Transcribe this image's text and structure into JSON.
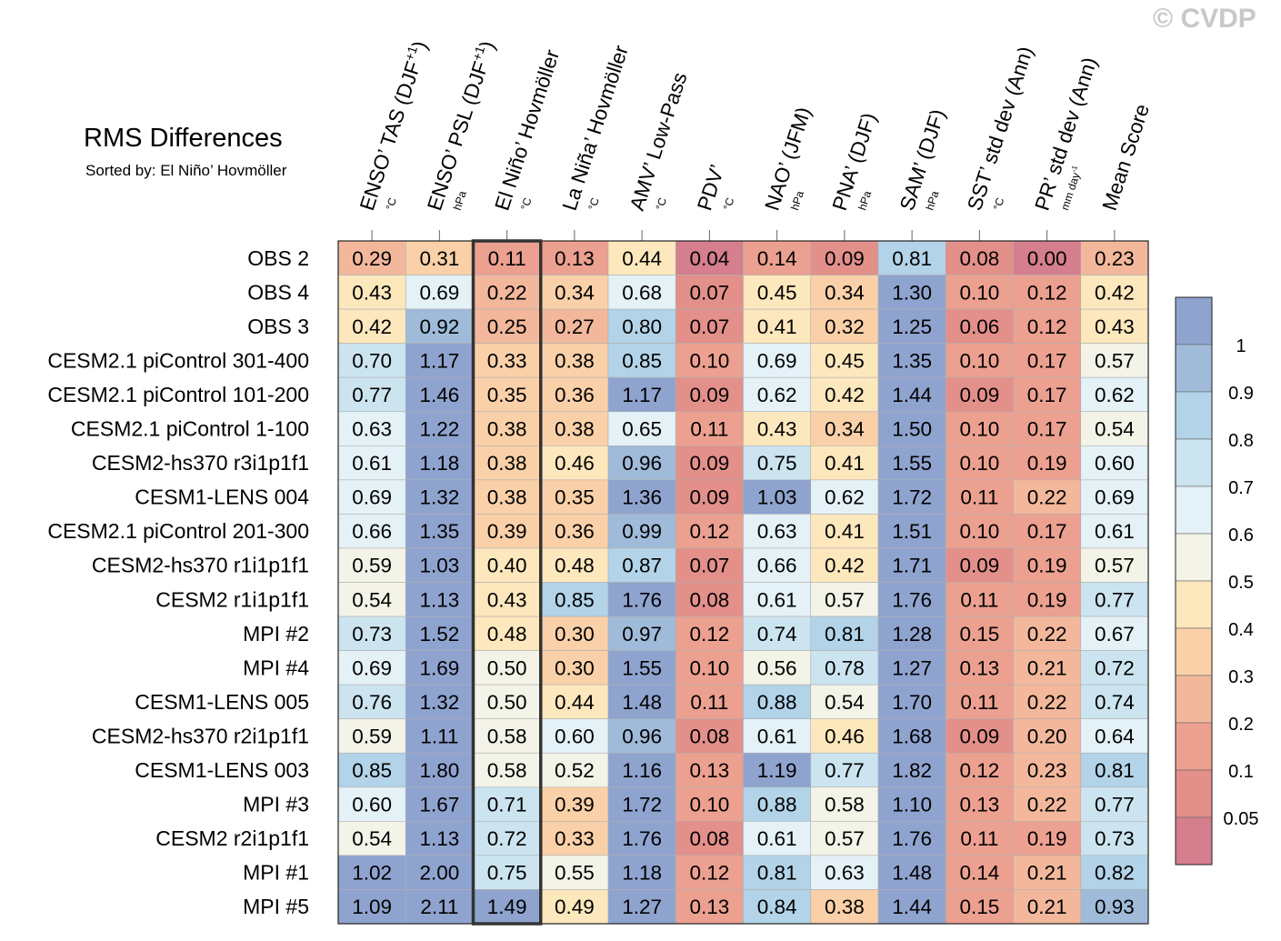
{
  "watermark": "© CVDP",
  "chart_data": {
    "type": "heatmap",
    "title": "RMS Differences",
    "subtitle": "Sorted by: El Niño’ Hovmöller",
    "columns": [
      {
        "label": "ENSO’ TAS (DJF",
        "sup": "+1",
        "close": ")",
        "unit": "°C"
      },
      {
        "label": "ENSO’ PSL (DJF",
        "sup": "+1",
        "close": ")",
        "unit": "hPa"
      },
      {
        "label": "El Niño’ Hovmöller",
        "unit": "°C"
      },
      {
        "label": "La Niña’ Hovmöller",
        "unit": "°C"
      },
      {
        "label": "AMV’ Low-Pass",
        "unit": "°C"
      },
      {
        "label": "PDV’",
        "unit": "°C"
      },
      {
        "label": "NAO’ (JFM)",
        "unit": "hPa"
      },
      {
        "label": "PNA’ (DJF)",
        "unit": "hPa"
      },
      {
        "label": "SAM’ (DJF)",
        "unit": "hPa"
      },
      {
        "label": "SST’ std dev (Ann)",
        "unit": "°C"
      },
      {
        "label": "PR’ std dev (Ann)",
        "unit": "mm day",
        "unit_sup": "-1"
      },
      {
        "label": "Mean Score",
        "unit": ""
      }
    ],
    "rows": [
      {
        "name": "OBS 2",
        "values": [
          0.29,
          0.31,
          0.11,
          0.13,
          0.44,
          0.04,
          0.14,
          0.09,
          0.81,
          0.08,
          0.0,
          0.23
        ]
      },
      {
        "name": "OBS 4",
        "values": [
          0.43,
          0.69,
          0.22,
          0.34,
          0.68,
          0.07,
          0.45,
          0.34,
          1.3,
          0.1,
          0.12,
          0.42
        ]
      },
      {
        "name": "OBS 3",
        "values": [
          0.42,
          0.92,
          0.25,
          0.27,
          0.8,
          0.07,
          0.41,
          0.32,
          1.25,
          0.06,
          0.12,
          0.43
        ]
      },
      {
        "name": "CESM2.1 piControl 301-400",
        "values": [
          0.7,
          1.17,
          0.33,
          0.38,
          0.85,
          0.1,
          0.69,
          0.45,
          1.35,
          0.1,
          0.17,
          0.57
        ]
      },
      {
        "name": "CESM2.1 piControl 101-200",
        "values": [
          0.77,
          1.46,
          0.35,
          0.36,
          1.17,
          0.09,
          0.62,
          0.42,
          1.44,
          0.09,
          0.17,
          0.62
        ]
      },
      {
        "name": "CESM2.1 piControl 1-100",
        "values": [
          0.63,
          1.22,
          0.38,
          0.38,
          0.65,
          0.11,
          0.43,
          0.34,
          1.5,
          0.1,
          0.17,
          0.54
        ]
      },
      {
        "name": "CESM2-hs370 r3i1p1f1",
        "values": [
          0.61,
          1.18,
          0.38,
          0.46,
          0.96,
          0.09,
          0.75,
          0.41,
          1.55,
          0.1,
          0.19,
          0.6
        ]
      },
      {
        "name": "CESM1-LENS 004",
        "values": [
          0.69,
          1.32,
          0.38,
          0.35,
          1.36,
          0.09,
          1.03,
          0.62,
          1.72,
          0.11,
          0.22,
          0.69
        ]
      },
      {
        "name": "CESM2.1 piControl 201-300",
        "values": [
          0.66,
          1.35,
          0.39,
          0.36,
          0.99,
          0.12,
          0.63,
          0.41,
          1.51,
          0.1,
          0.17,
          0.61
        ]
      },
      {
        "name": "CESM2-hs370 r1i1p1f1",
        "values": [
          0.59,
          1.03,
          0.4,
          0.48,
          0.87,
          0.07,
          0.66,
          0.42,
          1.71,
          0.09,
          0.19,
          0.57
        ]
      },
      {
        "name": "CESM2 r1i1p1f1",
        "values": [
          0.54,
          1.13,
          0.43,
          0.85,
          1.76,
          0.08,
          0.61,
          0.57,
          1.76,
          0.11,
          0.19,
          0.77
        ]
      },
      {
        "name": "MPI #2",
        "values": [
          0.73,
          1.52,
          0.48,
          0.3,
          0.97,
          0.12,
          0.74,
          0.81,
          1.28,
          0.15,
          0.22,
          0.67
        ]
      },
      {
        "name": "MPI #4",
        "values": [
          0.69,
          1.69,
          0.5,
          0.3,
          1.55,
          0.1,
          0.56,
          0.78,
          1.27,
          0.13,
          0.21,
          0.72
        ]
      },
      {
        "name": "CESM1-LENS 005",
        "values": [
          0.76,
          1.32,
          0.5,
          0.44,
          1.48,
          0.11,
          0.88,
          0.54,
          1.7,
          0.11,
          0.22,
          0.74
        ]
      },
      {
        "name": "CESM2-hs370 r2i1p1f1",
        "values": [
          0.59,
          1.11,
          0.58,
          0.6,
          0.96,
          0.08,
          0.61,
          0.46,
          1.68,
          0.09,
          0.2,
          0.64
        ]
      },
      {
        "name": "CESM1-LENS 003",
        "values": [
          0.85,
          1.8,
          0.58,
          0.52,
          1.16,
          0.13,
          1.19,
          0.77,
          1.82,
          0.12,
          0.23,
          0.81
        ]
      },
      {
        "name": "MPI #3",
        "values": [
          0.6,
          1.67,
          0.71,
          0.39,
          1.72,
          0.1,
          0.88,
          0.58,
          1.1,
          0.13,
          0.22,
          0.77
        ]
      },
      {
        "name": "CESM2 r2i1p1f1",
        "values": [
          0.54,
          1.13,
          0.72,
          0.33,
          1.76,
          0.08,
          0.61,
          0.57,
          1.76,
          0.11,
          0.19,
          0.73
        ]
      },
      {
        "name": "MPI #1",
        "values": [
          1.02,
          2.0,
          0.75,
          0.55,
          1.18,
          0.12,
          0.81,
          0.63,
          1.48,
          0.14,
          0.21,
          0.82
        ]
      },
      {
        "name": "MPI #5",
        "values": [
          1.09,
          2.11,
          1.49,
          0.49,
          1.27,
          0.13,
          0.84,
          0.38,
          1.44,
          0.15,
          0.21,
          0.93
        ]
      }
    ],
    "highlighted_column": 2,
    "colorbar": {
      "levels": [
        0.05,
        0.1,
        0.2,
        0.3,
        0.4,
        0.5,
        0.6,
        0.7,
        0.8,
        0.9,
        1
      ],
      "tick_labels": [
        "0.05",
        "0.1",
        "0.2",
        "0.3",
        "0.4",
        "0.5",
        "0.6",
        "0.7",
        "0.8",
        "0.9",
        "1"
      ],
      "colors": [
        "#d47e8e",
        "#e38f8a",
        "#eca090",
        "#f3b89c",
        "#f9d0a8",
        "#fde7bd",
        "#f3f3e8",
        "#e4f1f7",
        "#cbe4f0",
        "#b2d3e8",
        "#9fbbd9",
        "#8fa3cf"
      ]
    }
  }
}
